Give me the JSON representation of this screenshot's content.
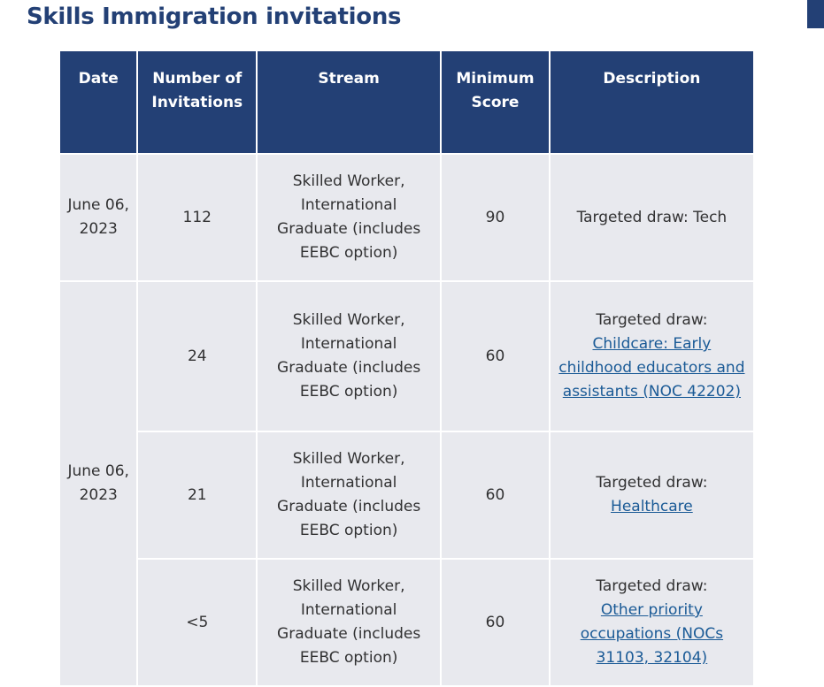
{
  "title": "Skills Immigration invitations",
  "headers": [
    "Date",
    "Number of Invitations",
    "Stream",
    "Minimum Score",
    "Description"
  ],
  "rows": [
    {
      "date": "June 06, 2023",
      "count": "112",
      "stream": "Skilled Worker, International Graduate (includes EEBC option)",
      "score": "90",
      "desc": "Targeted draw: Tech",
      "link": ""
    },
    {
      "date": "June 06, 2023",
      "count": "24",
      "stream": "Skilled Worker, International Graduate (includes EEBC option)",
      "score": "60",
      "desc": "Targeted draw:",
      "link": "Childcare: Early childhood educators and assistants (NOC 42202)"
    },
    {
      "count": "21",
      "stream": "Skilled Worker, International Graduate (includes EEBC option)",
      "score": "60",
      "desc": "Targeted draw:",
      "link": "Healthcare"
    },
    {
      "count": "<5",
      "stream": "Skilled Worker, International Graduate (includes EEBC option)",
      "score": "60",
      "desc": "Targeted draw:",
      "link": "Other priority occupations (NOCs 31103, 32104)"
    }
  ],
  "colors": {
    "header": "#234075",
    "cell": "#e8e9ee",
    "link": "#1a5a96"
  }
}
